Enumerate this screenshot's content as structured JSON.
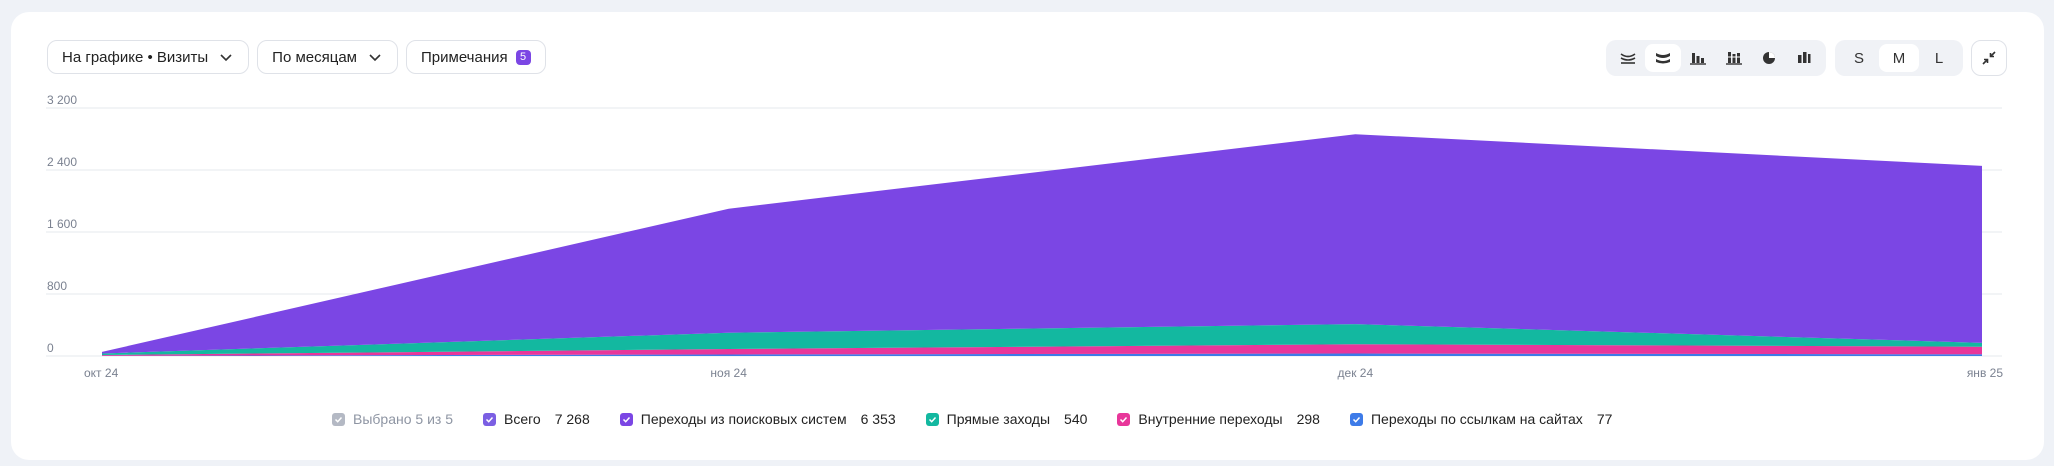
{
  "toolbar": {
    "metric_select": "На графике • Визиты",
    "period_select": "По месяцам",
    "notes_label": "Примечания",
    "notes_count": "5"
  },
  "view_buttons": [
    "area-lines-icon",
    "area-stacked-icon",
    "bar-icon",
    "bar-stacked-icon",
    "pie-icon",
    "column-icon"
  ],
  "size_buttons": [
    "S",
    "M",
    "L"
  ],
  "size_selected": "M",
  "colors": {
    "search": "#7b46e4",
    "direct": "#13b8a0",
    "internal": "#e8369a",
    "links": "#3d7be8",
    "total": "#7b5fe3"
  },
  "legend": {
    "selected_label": "Выбрано 5 из 5",
    "items": [
      {
        "label": "Всего",
        "value": "7 268",
        "color": "#7b5fe3"
      },
      {
        "label": "Переходы из поисковых систем",
        "value": "6 353",
        "color": "#7b46e4"
      },
      {
        "label": "Прямые заходы",
        "value": "540",
        "color": "#13b8a0"
      },
      {
        "label": "Внутренние переходы",
        "value": "298",
        "color": "#e8369a"
      },
      {
        "label": "Переходы по ссылкам на сайтах",
        "value": "77",
        "color": "#3d7be8"
      }
    ]
  },
  "chart_data": {
    "type": "area",
    "stacked": true,
    "categories": [
      "окт 24",
      "ноя 24",
      "дек 24",
      "янв 25"
    ],
    "yticks": [
      "0",
      "800",
      "1 600",
      "2 400",
      "3 200"
    ],
    "ylim": [
      0,
      3200
    ],
    "grid": true,
    "series": [
      {
        "name": "Переходы по ссылкам на сайтах",
        "values": [
          3,
          20,
          32,
          22
        ],
        "color": "#3d7be8"
      },
      {
        "name": "Внутренние переходы",
        "values": [
          10,
          70,
          120,
          98
        ],
        "color": "#e8369a"
      },
      {
        "name": "Прямые заходы",
        "values": [
          20,
          210,
          260,
          50
        ],
        "color": "#13b8a0"
      },
      {
        "name": "Переходы из поисковых систем",
        "values": [
          20,
          1600,
          2450,
          2283
        ],
        "color": "#7b46e4"
      }
    ]
  }
}
